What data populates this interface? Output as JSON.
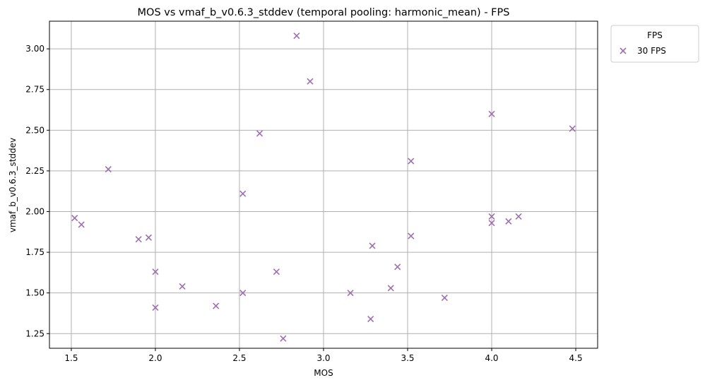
{
  "chart_data": {
    "type": "scatter",
    "title": "MOS vs vmaf_b_v0.6.3_stddev (temporal pooling: harmonic_mean) - FPS",
    "xlabel": "MOS",
    "ylabel": "vmaf_b_v0.6.3_stddev",
    "xlim": [
      1.37,
      4.63
    ],
    "ylim": [
      1.16,
      3.17
    ],
    "xticks": [
      "1.5",
      "2.0",
      "2.5",
      "3.0",
      "3.5",
      "4.0",
      "4.5"
    ],
    "yticks": [
      "1.25",
      "1.50",
      "1.75",
      "2.00",
      "2.25",
      "2.50",
      "2.75",
      "3.00"
    ],
    "grid": true,
    "legend": {
      "title": "FPS",
      "placement": "outside-top-right",
      "entries": [
        "30 FPS"
      ]
    },
    "series": [
      {
        "name": "30 FPS",
        "marker": "x",
        "color": "#9e6fae",
        "points": [
          [
            1.52,
            1.96
          ],
          [
            1.56,
            1.92
          ],
          [
            1.72,
            2.26
          ],
          [
            1.9,
            1.83
          ],
          [
            1.96,
            1.84
          ],
          [
            2.0,
            1.63
          ],
          [
            2.0,
            1.41
          ],
          [
            2.16,
            1.54
          ],
          [
            2.36,
            1.42
          ],
          [
            2.52,
            2.11
          ],
          [
            2.52,
            1.5
          ],
          [
            2.62,
            2.48
          ],
          [
            2.72,
            1.63
          ],
          [
            2.76,
            1.22
          ],
          [
            2.84,
            3.08
          ],
          [
            2.92,
            2.8
          ],
          [
            3.16,
            1.5
          ],
          [
            3.28,
            1.34
          ],
          [
            3.29,
            1.79
          ],
          [
            3.4,
            1.53
          ],
          [
            3.44,
            1.66
          ],
          [
            3.52,
            2.31
          ],
          [
            3.52,
            1.85
          ],
          [
            3.72,
            1.47
          ],
          [
            4.0,
            2.6
          ],
          [
            4.0,
            1.97
          ],
          [
            4.0,
            1.93
          ],
          [
            4.1,
            1.94
          ],
          [
            4.16,
            1.97
          ],
          [
            4.48,
            2.51
          ]
        ]
      }
    ]
  }
}
